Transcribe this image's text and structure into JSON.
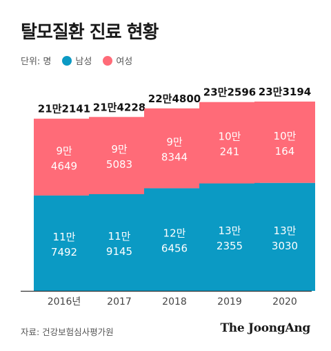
{
  "title": "탈모질환 진료 현황",
  "legend": {
    "unit": "단위: 명",
    "series": [
      "남성",
      "여성"
    ]
  },
  "colors": {
    "male": "#0b9ac4",
    "female": "#ff6b78",
    "axis": "#333333",
    "text_on_bar": "#ffffff"
  },
  "source": "자료: 건강보험심사평가원",
  "brand": "The JoongAng",
  "chart_data": {
    "type": "bar",
    "stacked": true,
    "categories": [
      "2016년",
      "2017",
      "2018",
      "2019",
      "2020"
    ],
    "series": [
      {
        "name": "남성",
        "values": [
          117492,
          119145,
          126456,
          132355,
          133030
        ],
        "labels": [
          [
            "11만",
            "7492"
          ],
          [
            "11만",
            "9145"
          ],
          [
            "12만",
            "6456"
          ],
          [
            "13만",
            "2355"
          ],
          [
            "13만",
            "3030"
          ]
        ]
      },
      {
        "name": "여성",
        "values": [
          94649,
          95083,
          98344,
          100241,
          100164
        ],
        "labels": [
          [
            "9만",
            "4649"
          ],
          [
            "9만",
            "5083"
          ],
          [
            "9만",
            "8344"
          ],
          [
            "10만",
            "241"
          ],
          [
            "10만",
            "164"
          ]
        ]
      }
    ],
    "totals": [
      "21만2141",
      "21만4228",
      "22만4800",
      "23만2596",
      "23만3194"
    ],
    "ylim": [
      0,
      233194
    ],
    "legend_position": "top-left",
    "grid": false
  }
}
